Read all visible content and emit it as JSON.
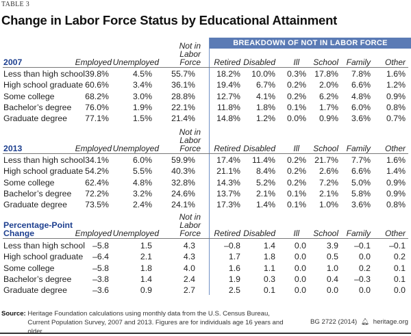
{
  "tag": "TABLE 3",
  "title": "Change in Labor Force Status by Educational Attainment",
  "band": "BREAKDOWN OF NOT IN LABOR FORCE",
  "columns": [
    "Employed",
    "Unemployed",
    "Not in Labor Force",
    "Retired",
    "Disabled",
    "Ill",
    "School",
    "Family",
    "Other"
  ],
  "sections": [
    {
      "label": "2007",
      "rows": [
        {
          "label": "Less than high school",
          "values": [
            "39.8%",
            "4.5%",
            "55.7%",
            "18.2%",
            "10.0%",
            "0.3%",
            "17.8%",
            "7.8%",
            "1.6%"
          ]
        },
        {
          "label": "High school graduate",
          "values": [
            "60.6%",
            "3.4%",
            "36.1%",
            "19.4%",
            "6.7%",
            "0.2%",
            "2.0%",
            "6.6%",
            "1.2%"
          ]
        },
        {
          "label": "Some college",
          "values": [
            "68.2%",
            "3.0%",
            "28.8%",
            "12.7%",
            "4.1%",
            "0.2%",
            "6.2%",
            "4.8%",
            "0.9%"
          ]
        },
        {
          "label": "Bachelor’s degree",
          "values": [
            "76.0%",
            "1.9%",
            "22.1%",
            "11.8%",
            "1.8%",
            "0.1%",
            "1.7%",
            "6.0%",
            "0.8%"
          ]
        },
        {
          "label": "Graduate degree",
          "values": [
            "77.1%",
            "1.5%",
            "21.4%",
            "14.8%",
            "1.2%",
            "0.0%",
            "0.9%",
            "3.6%",
            "0.7%"
          ]
        }
      ]
    },
    {
      "label": "2013",
      "rows": [
        {
          "label": "Less than high school",
          "values": [
            "34.1%",
            "6.0%",
            "59.9%",
            "17.4%",
            "11.4%",
            "0.2%",
            "21.7%",
            "7.7%",
            "1.6%"
          ]
        },
        {
          "label": "High school graduate",
          "values": [
            "54.2%",
            "5.5%",
            "40.3%",
            "21.1%",
            "8.4%",
            "0.2%",
            "2.6%",
            "6.6%",
            "1.4%"
          ]
        },
        {
          "label": "Some college",
          "values": [
            "62.4%",
            "4.8%",
            "32.8%",
            "14.3%",
            "5.2%",
            "0.2%",
            "7.2%",
            "5.0%",
            "0.9%"
          ]
        },
        {
          "label": "Bachelor’s degree",
          "values": [
            "72.2%",
            "3.2%",
            "24.6%",
            "13.7%",
            "2.1%",
            "0.1%",
            "2.1%",
            "5.8%",
            "0.9%"
          ]
        },
        {
          "label": "Graduate degree",
          "values": [
            "73.5%",
            "2.4%",
            "24.1%",
            "17.3%",
            "1.4%",
            "0.1%",
            "1.0%",
            "3.6%",
            "0.8%"
          ]
        }
      ]
    },
    {
      "label": "Percentage-Point Change",
      "rows": [
        {
          "label": "Less than high school",
          "values": [
            "–5.8",
            "1.5",
            "4.3",
            "–0.8",
            "1.4",
            "0.0",
            "3.9",
            "–0.1",
            "–0.1"
          ]
        },
        {
          "label": "High school graduate",
          "values": [
            "–6.4",
            "2.1",
            "4.3",
            "1.7",
            "1.8",
            "0.0",
            "0.5",
            "0.0",
            "0.2"
          ]
        },
        {
          "label": "Some college",
          "values": [
            "–5.8",
            "1.8",
            "4.0",
            "1.6",
            "1.1",
            "0.0",
            "1.0",
            "0.2",
            "0.1"
          ]
        },
        {
          "label": "Bachelor’s degree",
          "values": [
            "–3.8",
            "1.4",
            "2.4",
            "1.9",
            "0.3",
            "0.0",
            "0.4",
            "–0.3",
            "0.1"
          ]
        },
        {
          "label": "Graduate degree",
          "values": [
            "–3.6",
            "0.9",
            "2.7",
            "2.5",
            "0.1",
            "0.0",
            "0.0",
            "0.0",
            "0.0"
          ]
        }
      ]
    }
  ],
  "source_label": "Source:",
  "source_text": "Heritage Foundation calculations using monthly data from the U.S. Census Bureau, Current Population Survey, 2007 and 2013. Figures are for individuals age 16 years and older.",
  "credit_id": "BG 2722 (2014)",
  "credit_icon": "bell-icon",
  "credit_site": "heritage.org"
}
